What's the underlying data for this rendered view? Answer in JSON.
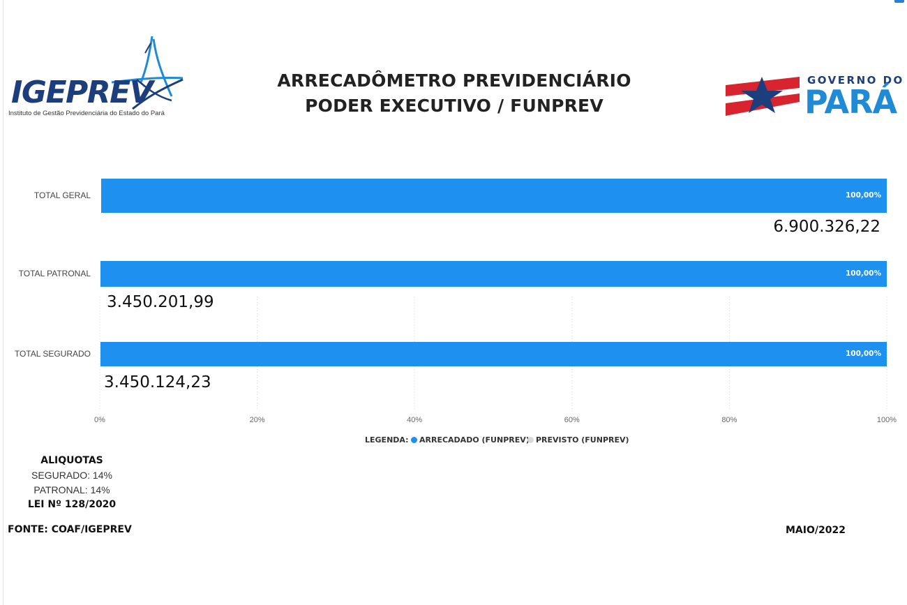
{
  "header": {
    "title_line1": "ARRECADÔMETRO PREVIDENCIÁRIO",
    "title_line2": "PODER EXECUTIVO / FUNPREV"
  },
  "logos": {
    "left": {
      "wordmark": "IGEPREV",
      "subtitle": "Instituto de Gestão Previdenciária do Estado do Pará"
    },
    "right": {
      "top_text": "GOVERNO DO",
      "bottom_text": "PARÁ"
    }
  },
  "chart_data": {
    "type": "bar",
    "orientation": "horizontal",
    "categories": [
      "TOTAL GERAL",
      "TOTAL PATRONAL",
      "TOTAL SEGURADO"
    ],
    "series": [
      {
        "name": "ARRECADADO (FUNPREV)",
        "color": "#1e90f0",
        "values": [
          100,
          100,
          100
        ],
        "data_labels": [
          "100,00%",
          "100,00%",
          "100,00%"
        ]
      }
    ],
    "value_labels": [
      "6.900.326,22",
      "3.450.201,99",
      "3.450.124,23"
    ],
    "xlim": [
      0,
      100
    ],
    "x_ticks": [
      "0%",
      "20%",
      "40%",
      "60%",
      "80%",
      "100%"
    ],
    "grid": "vertical dotted",
    "legend": {
      "position": "bottom",
      "title": "LEGENDA:",
      "entries": [
        {
          "label": "ARRECADADO (FUNPREV)",
          "color": "#1e90f0"
        },
        {
          "label": "PREVISTO (FUNPREV)",
          "color": "#d9d9d9"
        }
      ]
    }
  },
  "aliquotas": {
    "heading": "ALIQUOTAS",
    "segurado": "SEGURADO: 14%",
    "patronal": "PATRONAL: 14%",
    "law": "LEI Nº 128/2020"
  },
  "footer": {
    "source": "FONTE: COAF/IGEPREV",
    "date": "MAIO/2022"
  }
}
